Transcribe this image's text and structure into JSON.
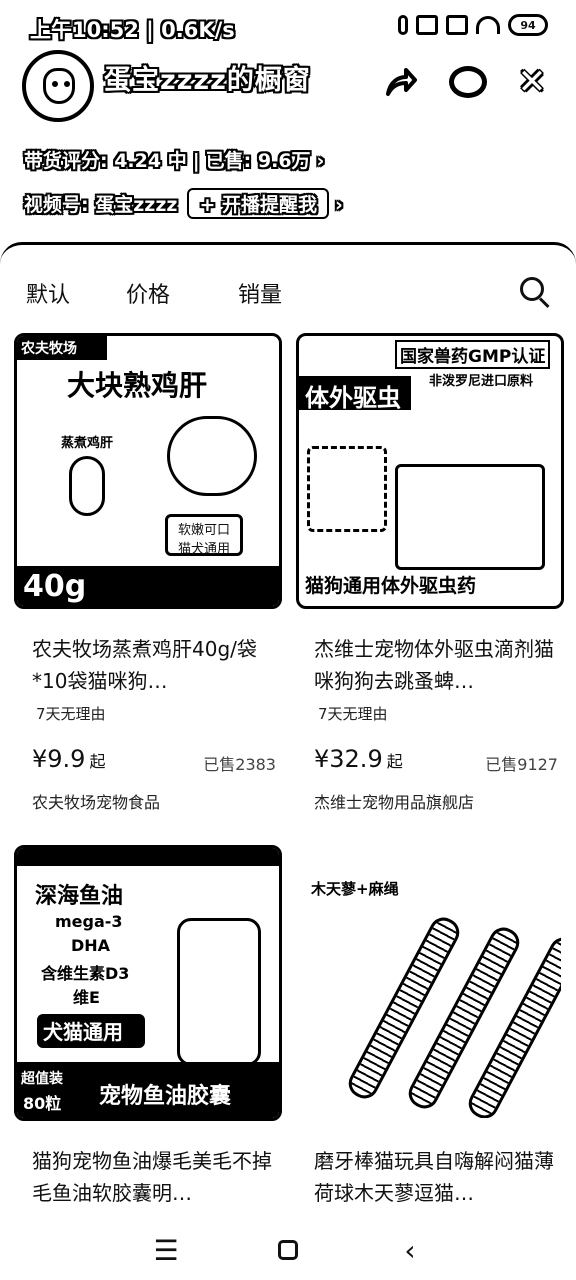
{
  "status": {
    "time_speed": "上午10:52 | 0.6K/s",
    "battery": "94"
  },
  "header": {
    "shop_name": "蛋宝zzzz的橱窗",
    "rating": "带货评分: 4.24 中",
    "sold": "已售: 9.6万",
    "rating_chevron": "›",
    "channel": "视频号: 蛋宝zzzz",
    "remind_label": "+ 开播提醒我",
    "channel_chevron": "›",
    "share_icon": "share-icon",
    "chat_icon": "chat-icon",
    "close_label": "✕"
  },
  "sort_tabs": [
    "默认",
    "价格",
    "销量"
  ],
  "products": [
    {
      "art": {
        "banner": "农夫牧场",
        "big_title": "大块熟鸡肝",
        "pack": "蒸煮鸡肝",
        "badge": "软嫩可口\n猫犬通用",
        "bottom": "40g"
      },
      "title": "农夫牧场蒸煮鸡肝40g/袋*10袋猫咪狗…",
      "tag": "7天无理由",
      "price": "¥9.9",
      "price_suffix": "起",
      "sold": "已售2383",
      "store": "农夫牧场宠物食品"
    },
    {
      "art": {
        "banner": "国家兽药GMP认证",
        "big_title": "体外驱虫",
        "sub": "非泼罗尼进口原料",
        "bottom": "猫狗通用体外驱虫药"
      },
      "title": "杰维士宠物体外驱虫滴剂猫咪狗狗去跳蚤蜱…",
      "tag": "7天无理由",
      "price": "¥32.9",
      "price_suffix": "起",
      "sold": "已售9127",
      "store": "杰维士宠物用品旗舰店"
    },
    {
      "art": {
        "big_title": "深海鱼油",
        "line1": "mega-3",
        "line2": "DHA",
        "line3": "含维生素D3",
        "line4": "维E",
        "badge": "犬猫通用",
        "tag": "超值装",
        "count": "80粒",
        "bottom": "宠物鱼油胶囊"
      },
      "title": "猫狗宠物鱼油爆毛美毛不掉毛鱼油软胶囊明…"
    },
    {
      "art": {
        "big_title": "木天蓼+麻绳"
      },
      "title": "磨牙棒猫玩具自嗨解闷猫薄荷球木天蓼逗猫…"
    }
  ],
  "navbar": {
    "menu": "☰",
    "back": "‹"
  }
}
